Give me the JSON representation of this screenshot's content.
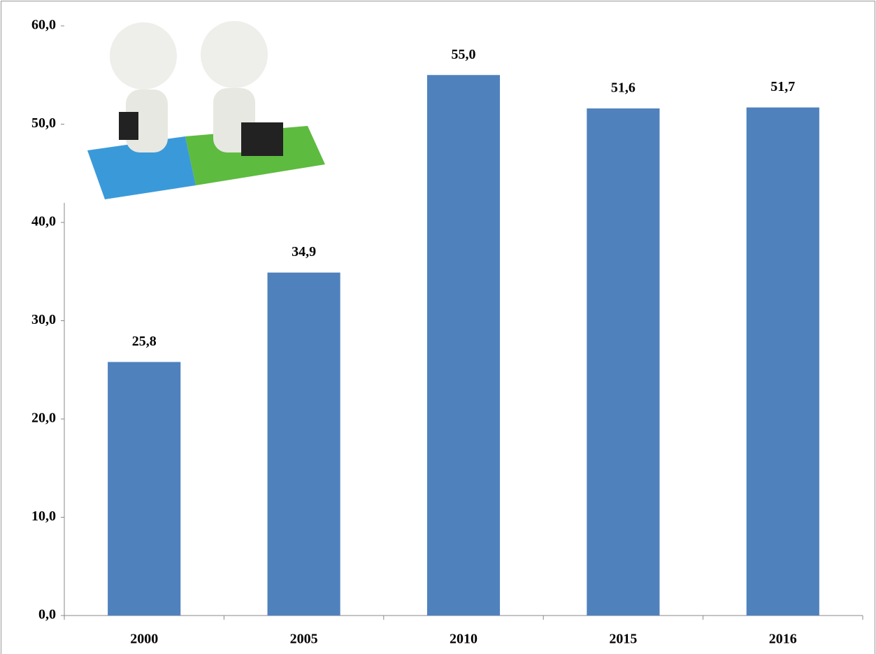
{
  "chart_data": {
    "type": "bar",
    "categories": [
      "2000",
      "2005",
      "2010",
      "2015",
      "2016"
    ],
    "values": [
      25.8,
      34.9,
      55.0,
      51.6,
      51.7
    ],
    "value_labels": [
      "25,8",
      "34,9",
      "55,0",
      "51,6",
      "51,7"
    ],
    "color": "#4f81bd",
    "ylim": [
      0,
      60
    ],
    "yticks": [
      {
        "value": 0,
        "label": "0,0"
      },
      {
        "value": 10,
        "label": "10,0"
      },
      {
        "value": 20,
        "label": "20,0"
      },
      {
        "value": 30,
        "label": "30,0"
      },
      {
        "value": 40,
        "label": "40,0"
      },
      {
        "value": 50,
        "label": "50,0"
      },
      {
        "value": 60,
        "label": "60,0"
      }
    ],
    "grid": false
  }
}
